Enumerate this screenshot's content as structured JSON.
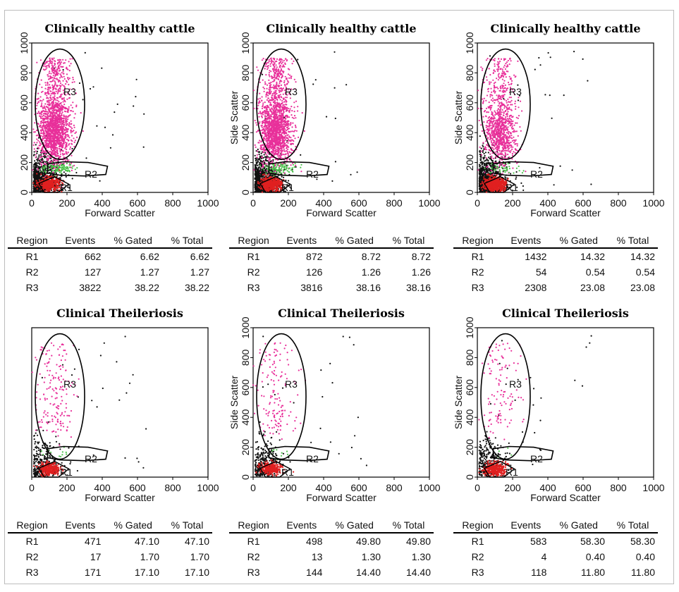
{
  "chart_data": [
    {
      "type": "scatter",
      "title": "Clinically healthy cattle",
      "xlabel": "Forward Scatter",
      "ylabel": "",
      "xlim": [
        0,
        1000
      ],
      "ylim": [
        0,
        1000
      ],
      "x_ticks": [
        "0",
        "200",
        "400",
        "600",
        "800",
        "1000"
      ],
      "y_ticks": [
        "0",
        "200",
        "400",
        "600",
        "800",
        "1000"
      ],
      "gates": [
        "R1",
        "R2",
        "R3"
      ],
      "table": {
        "columns": [
          "Region",
          "Events",
          "% Gated",
          "% Total"
        ],
        "rows": [
          [
            "R1",
            "662",
            "6.62",
            "6.62"
          ],
          [
            "R2",
            "127",
            "1.27",
            "1.27"
          ],
          [
            "R3",
            "3822",
            "38.22",
            "38.22"
          ]
        ]
      }
    },
    {
      "type": "scatter",
      "title": "Clinically healthy cattle",
      "xlabel": "Forward Scatter",
      "ylabel": "Side Scatter",
      "xlim": [
        0,
        1000
      ],
      "ylim": [
        0,
        1000
      ],
      "x_ticks": [
        "0",
        "200",
        "400",
        "600",
        "800",
        "1000"
      ],
      "y_ticks": [
        "0",
        "200",
        "400",
        "600",
        "800",
        "1000"
      ],
      "gates": [
        "R1",
        "R2",
        "R3"
      ],
      "table": {
        "columns": [
          "Region",
          "Events",
          "% Gated",
          "% Total"
        ],
        "rows": [
          [
            "R1",
            "872",
            "8.72",
            "8.72"
          ],
          [
            "R2",
            "126",
            "1.26",
            "1.26"
          ],
          [
            "R3",
            "3816",
            "38.16",
            "38.16"
          ]
        ]
      }
    },
    {
      "type": "scatter",
      "title": "Clinically healthy cattle",
      "xlabel": "Forward Scatter",
      "ylabel": "Side Scatter",
      "xlim": [
        0,
        1000
      ],
      "ylim": [
        0,
        1000
      ],
      "x_ticks": [
        "0",
        "200",
        "400",
        "600",
        "800",
        "1000"
      ],
      "y_ticks": [
        "0",
        "200",
        "400",
        "600",
        "800",
        "1000"
      ],
      "gates": [
        "R1",
        "R2",
        "R3"
      ],
      "table": {
        "columns": [
          "Region",
          "Events",
          "% Gated",
          "% Total"
        ],
        "rows": [
          [
            "R1",
            "1432",
            "14.32",
            "14.32"
          ],
          [
            "R2",
            "54",
            "0.54",
            "0.54"
          ],
          [
            "R3",
            "2308",
            "23.08",
            "23.08"
          ]
        ]
      }
    },
    {
      "type": "scatter",
      "title": "Clinical Theileriosis",
      "xlabel": "Forward Scatter",
      "ylabel": "",
      "xlim": [
        0,
        1000
      ],
      "ylim": [
        0,
        1000
      ],
      "x_ticks": [
        "0",
        "200",
        "400",
        "600",
        "800",
        "1000"
      ],
      "y_ticks": [],
      "gates": [
        "R1",
        "R2",
        "R3"
      ],
      "table": {
        "columns": [
          "Region",
          "Events",
          "% Gated",
          "% Total"
        ],
        "rows": [
          [
            "R1",
            "471",
            "47.10",
            "47.10"
          ],
          [
            "R2",
            "17",
            "1.70",
            "1.70"
          ],
          [
            "R3",
            "171",
            "17.10",
            "17.10"
          ]
        ]
      }
    },
    {
      "type": "scatter",
      "title": "Clinical Theileriosis",
      "xlabel": "Forward Scatter",
      "ylabel": "Side Scatter",
      "xlim": [
        0,
        1000
      ],
      "ylim": [
        0,
        1000
      ],
      "x_ticks": [
        "0",
        "200",
        "400",
        "600",
        "800",
        "1000"
      ],
      "y_ticks": [
        "0",
        "200",
        "400",
        "600",
        "800",
        "1000"
      ],
      "gates": [
        "R1",
        "R2",
        "R3"
      ],
      "table": {
        "columns": [
          "Region",
          "Events",
          "% Gated",
          "% Total"
        ],
        "rows": [
          [
            "R1",
            "498",
            "49.80",
            "49.80"
          ],
          [
            "R2",
            "13",
            "1.30",
            "1.30"
          ],
          [
            "R3",
            "144",
            "14.40",
            "14.40"
          ]
        ]
      }
    },
    {
      "type": "scatter",
      "title": "Clinical Theileriosis",
      "xlabel": "Forward Scatter",
      "ylabel": "Side Scatter",
      "xlim": [
        0,
        1000
      ],
      "ylim": [
        0,
        1000
      ],
      "x_ticks": [
        "0",
        "200",
        "400",
        "600",
        "800",
        "1000"
      ],
      "y_ticks": [
        "0",
        "200",
        "400",
        "600",
        "800",
        "1000"
      ],
      "gates": [
        "R1",
        "R2",
        "R3"
      ],
      "table": {
        "columns": [
          "Region",
          "Events",
          "% Gated",
          "% Total"
        ],
        "rows": [
          [
            "R1",
            "583",
            "58.30",
            "58.30"
          ],
          [
            "R2",
            "4",
            "0.40",
            "0.40"
          ],
          [
            "R3",
            "118",
            "11.80",
            "11.80"
          ]
        ]
      }
    }
  ],
  "colors": {
    "r1_points": "#e02020",
    "r2_points": "#4cc24c",
    "r3_points": "#e8309a",
    "ungated_points": "#111111"
  }
}
